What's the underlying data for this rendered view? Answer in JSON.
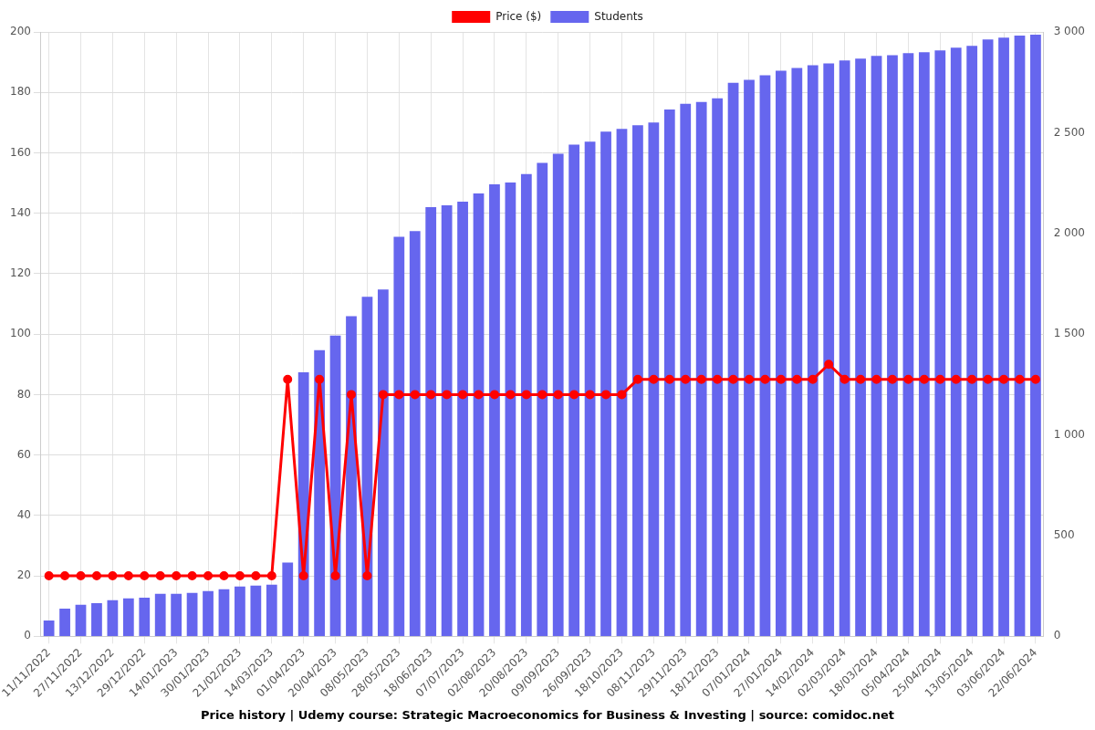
{
  "chart_data": {
    "type": "bar",
    "title": "Price history | Udemy course: Strategic Macroeconomics for Business & Investing | source: comidoc.net",
    "categories": [
      "11/11/2022",
      null,
      "27/11/2022",
      null,
      "13/12/2022",
      null,
      "29/12/2022",
      null,
      "14/01/2023",
      null,
      "30/01/2023",
      null,
      "21/02/2023",
      null,
      "14/03/2023",
      null,
      "01/04/2023",
      null,
      "20/04/2023",
      null,
      "08/05/2023",
      null,
      "28/05/2023",
      null,
      "18/06/2023",
      null,
      "07/07/2023",
      null,
      "02/08/2023",
      null,
      "20/08/2023",
      null,
      "09/09/2023",
      null,
      "26/09/2023",
      null,
      "18/10/2023",
      null,
      "08/11/2023",
      null,
      "29/11/2023",
      null,
      "18/12/2023",
      null,
      "07/01/2024",
      null,
      "27/01/2024",
      null,
      "14/02/2024",
      null,
      "02/03/2024",
      null,
      "18/03/2024",
      null,
      "05/04/2024",
      null,
      "25/04/2024",
      null,
      "13/05/2024",
      null,
      "03/06/2024",
      null,
      "22/06/2024"
    ],
    "series": [
      {
        "name": "Price ($)",
        "type": "line",
        "color": "#ff0000",
        "marker": "circle",
        "line_style": "solid",
        "axis": "y",
        "values": [
          20,
          20,
          20,
          20,
          20,
          20,
          20,
          20,
          20,
          20,
          20,
          20,
          20,
          20,
          20,
          85,
          20,
          85,
          20,
          80,
          20,
          80,
          80,
          80,
          80,
          80,
          80,
          80,
          80,
          80,
          80,
          80,
          80,
          80,
          80,
          80,
          80,
          85,
          85,
          85,
          85,
          85,
          85,
          85,
          85,
          85,
          85,
          85,
          85,
          90,
          85,
          85,
          85,
          85,
          85,
          85,
          85,
          85,
          85,
          85,
          85,
          85,
          85
        ]
      },
      {
        "name": "Students",
        "type": "bar",
        "color": "#6666ee",
        "axis": "y2",
        "values": [
          78,
          137,
          156,
          165,
          179,
          188,
          192,
          211,
          211,
          215,
          224,
          234,
          247,
          252,
          256,
          366,
          1310,
          1420,
          1493,
          1589,
          1685,
          1722,
          1983,
          2011,
          2130,
          2139,
          2157,
          2198,
          2244,
          2253,
          2295,
          2350,
          2395,
          2441,
          2455,
          2505,
          2519,
          2537,
          2551,
          2615,
          2643,
          2652,
          2670,
          2748,
          2762,
          2785,
          2808,
          2821,
          2835,
          2844,
          2858,
          2867,
          2881,
          2885,
          2895,
          2899,
          2908,
          2922,
          2931,
          2963,
          2972,
          2982,
          2986
        ]
      }
    ],
    "ylim": [
      0,
      200
    ],
    "yticks": [
      0,
      20,
      40,
      60,
      80,
      100,
      120,
      140,
      160,
      180,
      200
    ],
    "y2lim": [
      0,
      3000
    ],
    "y2ticks": [
      0,
      500,
      {
        "value": 1000,
        "label": "1 000"
      },
      {
        "value": 1500,
        "label": "1 500"
      },
      {
        "value": 2000,
        "label": "2 000"
      },
      {
        "value": 2500,
        "label": "2 500"
      },
      {
        "value": 3000,
        "label": "3 000"
      }
    ],
    "grid": true,
    "legend": "top"
  }
}
